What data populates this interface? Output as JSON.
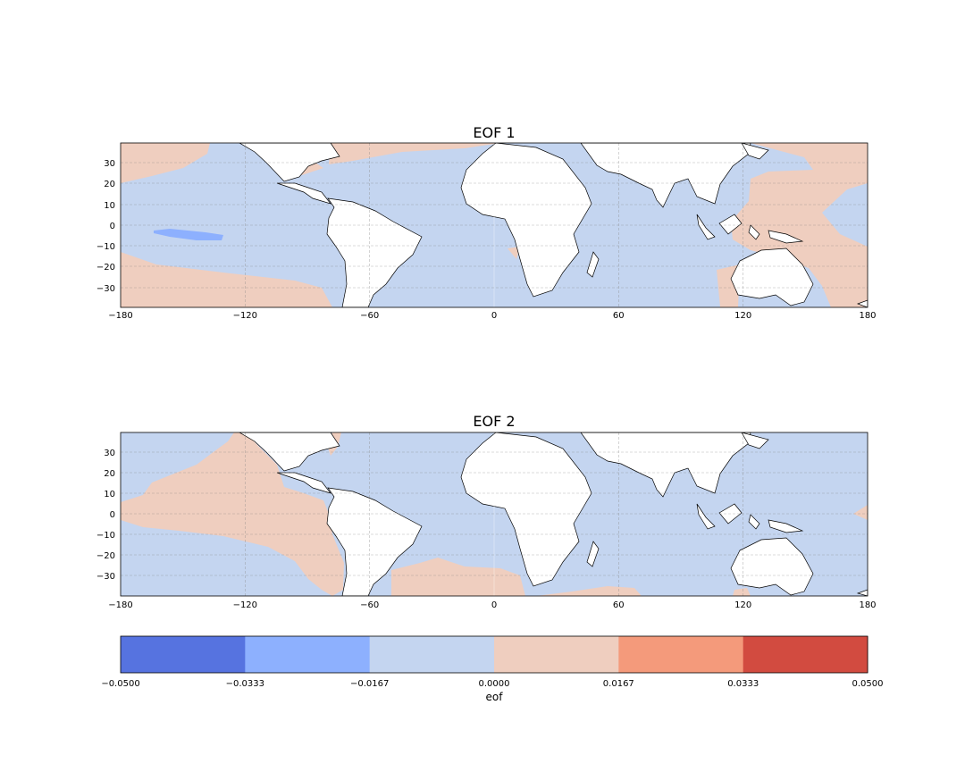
{
  "figure": {
    "panels": [
      {
        "title": "EOF 1",
        "x_ticks": [
          "−180",
          "−120",
          "−60",
          "0",
          "60",
          "120",
          "180"
        ],
        "y_ticks": [
          "30",
          "20",
          "10",
          "0",
          "−10",
          "−20",
          "−30"
        ],
        "xlim": [
          -180,
          180
        ],
        "ylim": [
          -40,
          40
        ],
        "grid": true,
        "background_fill": "#c4d5f0",
        "regions": [
          {
            "level": "0.0000 to 0.0167",
            "color": "#efcebf",
            "area": "northeast Pacific"
          },
          {
            "level": "0.0000 to 0.0167",
            "color": "#efcebf",
            "area": "southeast Pacific"
          },
          {
            "level": "0.0000 to 0.0167",
            "color": "#efcebf",
            "area": "North Atlantic"
          },
          {
            "level": "0.0000 to 0.0167",
            "color": "#efcebf",
            "area": "western Pacific / Australia"
          },
          {
            "level": "-0.0333 to -0.0167",
            "color": "#8db0fe",
            "area": "central Pacific near 5S"
          }
        ]
      },
      {
        "title": "EOF 2",
        "x_ticks": [
          "−180",
          "−120",
          "−60",
          "0",
          "60",
          "120",
          "180"
        ],
        "y_ticks": [
          "30",
          "20",
          "10",
          "0",
          "−10",
          "−20",
          "−30"
        ],
        "xlim": [
          -180,
          180
        ],
        "ylim": [
          -40,
          40
        ],
        "grid": true,
        "background_fill": "#c4d5f0",
        "regions": [
          {
            "level": "0.0000 to 0.0167",
            "color": "#efcebf",
            "area": "eastern tropical Pacific"
          },
          {
            "level": "0.0000 to 0.0167",
            "color": "#efcebf",
            "area": "South Atlantic"
          },
          {
            "level": "0.0000 to 0.0167",
            "color": "#efcebf",
            "area": "southern Indian Ocean"
          }
        ]
      }
    ],
    "colorbar": {
      "label": "eof",
      "ticks": [
        "−0.0500",
        "−0.0333",
        "−0.0167",
        "0.0000",
        "0.0167",
        "0.0333",
        "0.0500"
      ],
      "colors": [
        "#5673e0",
        "#8db0fe",
        "#c4d5f0",
        "#efcebf",
        "#f49a7b",
        "#d24b40"
      ]
    },
    "land_color": "#ffffff",
    "coastline_color": "#000000"
  }
}
